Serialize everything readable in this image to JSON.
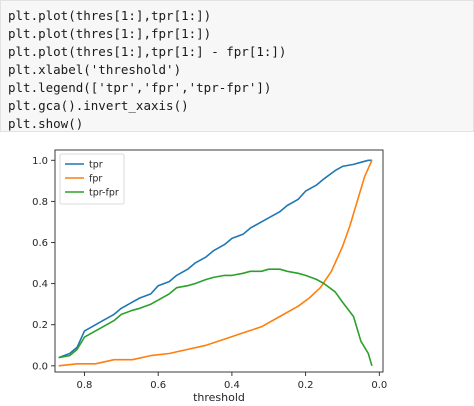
{
  "code": {
    "lines": [
      "plt.plot(thres[1:],tpr[1:])",
      "plt.plot(thres[1:],fpr[1:])",
      "plt.plot(thres[1:],tpr[1:] - fpr[1:])",
      "plt.xlabel('threshold')",
      "plt.legend(['tpr','fpr','tpr-fpr'])",
      "plt.gca().invert_xaxis()",
      "plt.show()"
    ]
  },
  "chart_data": {
    "type": "line",
    "title": "",
    "xlabel": "threshold",
    "ylabel": "",
    "xlim": [
      0.88,
      -0.01
    ],
    "ylim": [
      -0.03,
      1.05
    ],
    "x_inverted": true,
    "xticks": [
      "0.8",
      "0.6",
      "0.4",
      "0.2",
      "0.0"
    ],
    "xtick_values": [
      0.8,
      0.6,
      0.4,
      0.2,
      0.0
    ],
    "yticks": [
      "0.0",
      "0.2",
      "0.4",
      "0.6",
      "0.8",
      "1.0"
    ],
    "ytick_values": [
      0.0,
      0.2,
      0.4,
      0.6,
      0.8,
      1.0
    ],
    "grid": false,
    "legend_position": "top-left",
    "series": [
      {
        "name": "tpr",
        "color": "#1f77b4",
        "x": [
          0.87,
          0.84,
          0.82,
          0.8,
          0.78,
          0.75,
          0.72,
          0.7,
          0.67,
          0.65,
          0.62,
          0.6,
          0.57,
          0.55,
          0.52,
          0.5,
          0.47,
          0.45,
          0.42,
          0.4,
          0.37,
          0.35,
          0.32,
          0.3,
          0.27,
          0.25,
          0.22,
          0.2,
          0.17,
          0.15,
          0.12,
          0.1,
          0.07,
          0.05,
          0.03,
          0.02
        ],
        "y": [
          0.04,
          0.06,
          0.09,
          0.17,
          0.19,
          0.22,
          0.25,
          0.28,
          0.31,
          0.33,
          0.35,
          0.39,
          0.41,
          0.44,
          0.47,
          0.5,
          0.53,
          0.56,
          0.59,
          0.62,
          0.64,
          0.67,
          0.7,
          0.72,
          0.75,
          0.78,
          0.81,
          0.85,
          0.88,
          0.91,
          0.95,
          0.97,
          0.98,
          0.99,
          1.0,
          1.0
        ]
      },
      {
        "name": "fpr",
        "color": "#ff7f0e",
        "x": [
          0.87,
          0.82,
          0.77,
          0.72,
          0.67,
          0.62,
          0.57,
          0.52,
          0.47,
          0.42,
          0.37,
          0.32,
          0.27,
          0.22,
          0.19,
          0.16,
          0.13,
          0.1,
          0.08,
          0.06,
          0.04,
          0.02
        ],
        "y": [
          0.0,
          0.01,
          0.01,
          0.03,
          0.03,
          0.05,
          0.06,
          0.08,
          0.1,
          0.13,
          0.16,
          0.19,
          0.24,
          0.29,
          0.33,
          0.38,
          0.46,
          0.58,
          0.68,
          0.8,
          0.92,
          1.0
        ]
      },
      {
        "name": "tpr-fpr",
        "color": "#2ca02c",
        "x": [
          0.87,
          0.84,
          0.82,
          0.8,
          0.78,
          0.75,
          0.72,
          0.7,
          0.67,
          0.65,
          0.62,
          0.6,
          0.57,
          0.55,
          0.52,
          0.5,
          0.47,
          0.45,
          0.42,
          0.4,
          0.37,
          0.35,
          0.32,
          0.3,
          0.27,
          0.25,
          0.22,
          0.2,
          0.17,
          0.15,
          0.12,
          0.1,
          0.07,
          0.05,
          0.03,
          0.02
        ],
        "y": [
          0.04,
          0.05,
          0.08,
          0.14,
          0.16,
          0.19,
          0.22,
          0.25,
          0.27,
          0.28,
          0.3,
          0.32,
          0.35,
          0.38,
          0.39,
          0.4,
          0.42,
          0.43,
          0.44,
          0.44,
          0.45,
          0.46,
          0.46,
          0.47,
          0.47,
          0.46,
          0.45,
          0.44,
          0.42,
          0.4,
          0.36,
          0.31,
          0.24,
          0.12,
          0.06,
          0.0
        ]
      }
    ]
  }
}
